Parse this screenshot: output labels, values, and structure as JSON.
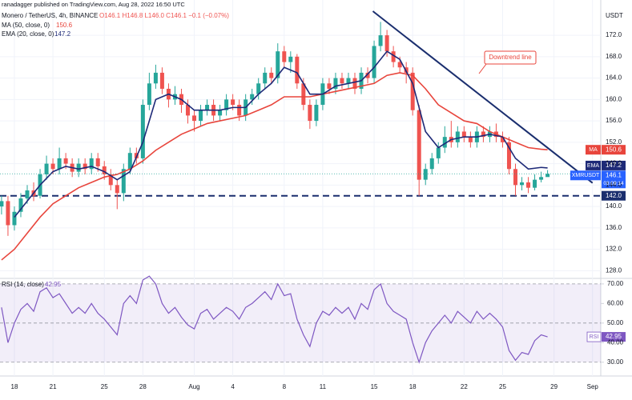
{
  "header": {
    "publisher": "ranadagger published on TradingView.com, Aug 28, 2022 16:50 UTC",
    "symbol": "Monero / TetherUS, 4h, BINANCE",
    "ohlc": "O146.1 H146.8 L146.0 C146.1 −0.1 (−0.07%)",
    "currency": "USDT",
    "ticker": "XMRUSDT",
    "countdown": "03:09:14"
  },
  "chart_data": [
    {
      "type": "candlestick",
      "x": [
        17,
        17.5,
        18,
        18.5,
        19,
        19.5,
        20,
        20.5,
        21,
        21.5,
        22,
        22.5,
        23,
        23.5,
        24,
        24.5,
        25,
        25.5,
        26,
        26.5,
        27,
        27.5,
        28,
        28.5,
        29,
        29.5,
        30,
        30.5,
        31,
        31.5,
        32,
        32.5,
        33,
        33.5,
        34,
        34.5,
        35,
        35.5,
        36,
        36.5,
        37,
        37.5,
        38,
        38.5,
        39,
        39.5,
        40,
        40.5,
        41,
        41.5,
        42,
        42.5,
        43,
        43.5,
        44,
        44.5,
        45,
        45.5,
        46,
        46.5,
        47,
        47.5,
        48,
        48.5,
        49,
        49.5,
        50,
        50.5,
        51,
        51.5,
        52,
        52.5,
        53,
        53.5,
        54,
        54.5,
        55,
        55.5,
        56,
        56.5,
        57,
        57.5,
        58,
        58.5,
        59,
        59.5
      ],
      "open": [
        140,
        141,
        136.5,
        139,
        141.5,
        143,
        142,
        146,
        148,
        147,
        149,
        148,
        146.5,
        148,
        147,
        149,
        147.5,
        146,
        144,
        142.5,
        147,
        150,
        149,
        159,
        163,
        165,
        162,
        160,
        161,
        159,
        157,
        156,
        158,
        159,
        157,
        158,
        160,
        159,
        157,
        160,
        161,
        163,
        165,
        164,
        169,
        167,
        168,
        163,
        159,
        156,
        159,
        163,
        162,
        164,
        163,
        164,
        162,
        165,
        164,
        170,
        172,
        169,
        167,
        166,
        165,
        158,
        145,
        147,
        149,
        151,
        153,
        152,
        154,
        153,
        152,
        154,
        153,
        154,
        153,
        152,
        147,
        144,
        144.5,
        143.5,
        145,
        145.5
      ],
      "high": [
        142,
        142,
        140,
        142.5,
        144,
        144.5,
        147,
        149.5,
        149,
        151,
        150,
        149,
        149,
        149,
        150,
        150,
        148.5,
        147,
        145,
        148,
        151,
        151,
        160,
        165,
        166.5,
        166,
        163,
        162.5,
        162,
        160,
        158,
        159,
        160,
        160,
        159,
        161,
        161,
        160,
        161,
        162,
        164,
        166,
        166,
        170.5,
        170,
        169,
        168.5,
        164,
        160,
        160,
        164,
        164,
        165,
        165,
        165,
        165,
        166,
        166,
        171,
        174.5,
        173,
        170,
        168,
        167,
        166,
        159,
        148,
        150,
        152,
        155,
        156,
        155,
        155,
        154,
        155,
        155,
        155,
        155.5,
        154,
        153,
        148,
        145.5,
        145.5,
        146,
        146.5,
        146.8
      ],
      "low": [
        138.5,
        134.5,
        135.5,
        138,
        140.5,
        141,
        141.5,
        145,
        146,
        146,
        147,
        145.5,
        145.5,
        146,
        146,
        146.5,
        145,
        143,
        139.5,
        141,
        146,
        148,
        148,
        158,
        162,
        161,
        158.5,
        159,
        157.5,
        155.5,
        154,
        155,
        157,
        156,
        156,
        157,
        158,
        156,
        156,
        159,
        160,
        162,
        163,
        163,
        166,
        165,
        162,
        158,
        154.5,
        155,
        158,
        161,
        161,
        162,
        162,
        161,
        161,
        163,
        163,
        169,
        168,
        166,
        165,
        163,
        157,
        142,
        144,
        146,
        148,
        150,
        151,
        151,
        152,
        151,
        151,
        152,
        152,
        152,
        151,
        146,
        142,
        143,
        142.5,
        143,
        144.5,
        146
      ],
      "close": [
        141,
        136.5,
        139,
        141.5,
        143,
        142,
        146,
        148,
        147,
        149,
        148,
        146.5,
        148,
        147,
        149,
        147.5,
        146,
        144,
        142.5,
        147,
        150,
        149,
        159,
        163,
        165,
        162,
        160,
        161,
        159,
        157,
        156,
        158,
        159,
        157,
        158,
        160,
        159,
        157,
        160,
        161,
        163,
        165,
        164,
        169,
        167,
        168,
        163,
        159,
        156,
        159,
        163,
        162,
        164,
        163,
        164,
        162,
        165,
        164,
        170,
        172,
        169,
        167,
        166,
        165,
        158,
        145,
        147,
        149,
        151,
        153,
        152,
        154,
        153,
        152,
        154,
        153,
        154,
        153,
        152,
        147,
        144,
        144.5,
        143.5,
        145,
        145.5,
        146.1
      ],
      "color_up": "#26a69a",
      "color_down": "#ef5350",
      "xlim": [
        16.88,
        63.64
      ],
      "xticks": [
        18,
        21,
        25,
        28,
        {
          "value": 32,
          "label": "Aug"
        },
        {
          "value": 35,
          "label": "4"
        },
        {
          "value": 39,
          "label": "8"
        },
        {
          "value": 42,
          "label": "11"
        },
        {
          "value": 46,
          "label": "15"
        },
        {
          "value": 49,
          "label": "18"
        },
        {
          "value": 53,
          "label": "22"
        },
        {
          "value": 56,
          "label": "25"
        },
        {
          "value": 60,
          "label": "29"
        },
        {
          "value": 63,
          "label": "Sep"
        }
      ],
      "ylim": [
        127,
        177.1
      ],
      "yticks": [
        {
          "value": 128,
          "label": "128.0"
        },
        {
          "value": 132,
          "label": "132.0"
        },
        {
          "value": 136,
          "label": "136.0"
        },
        {
          "value": 140,
          "label": "140.0"
        },
        {
          "value": 144,
          "label": "144.0"
        },
        {
          "value": 148,
          "label": "148.0"
        },
        {
          "value": 152,
          "label": "152.0"
        },
        {
          "value": 156,
          "label": "156.0"
        },
        {
          "value": 160,
          "label": "160.0"
        },
        {
          "value": 164,
          "label": "164.0"
        },
        {
          "value": 168,
          "label": "168.0"
        },
        {
          "value": 172,
          "label": "172.0"
        }
      ],
      "grid": true,
      "lines": [
        {
          "name": "MA",
          "legend": "MA (50, close, 0)",
          "color": "#e8453c",
          "x": [
            17,
            18,
            19,
            20,
            21,
            22,
            23,
            24,
            25,
            26,
            27,
            28,
            29,
            30,
            31,
            32,
            33,
            34,
            35,
            36,
            37,
            38,
            39,
            40,
            41,
            42,
            43,
            44,
            45,
            46,
            47,
            48,
            49,
            50,
            51,
            52,
            53,
            54,
            55,
            56,
            57,
            58,
            59,
            59.5
          ],
          "values": [
            130,
            132,
            135,
            138,
            140.5,
            142,
            143.5,
            144.5,
            145.5,
            146,
            147,
            148.5,
            150.5,
            152,
            153.5,
            154.5,
            155.5,
            156,
            156.5,
            157,
            158,
            159,
            160.5,
            160.5,
            160.5,
            161,
            161.5,
            162,
            162.5,
            163,
            164.5,
            165,
            164.5,
            162,
            159,
            157.5,
            156,
            155.5,
            154,
            153,
            152,
            151,
            150.7,
            150.6
          ]
        },
        {
          "name": "EMA",
          "legend": "EMA (20, close, 0)",
          "color": "#1e2a78",
          "x": [
            18,
            19,
            20,
            21,
            22,
            23,
            24,
            25,
            26,
            27,
            28,
            29,
            30,
            31,
            32,
            33,
            34,
            35,
            36,
            37,
            38,
            39,
            40,
            41,
            42,
            43,
            44,
            45,
            46,
            47,
            48,
            49,
            50,
            51,
            52,
            53,
            54,
            55,
            56,
            57,
            58,
            59,
            59.5
          ],
          "values": [
            138,
            141,
            144,
            146.5,
            147.5,
            147,
            147.5,
            146.5,
            145,
            146.5,
            152,
            160,
            161,
            160,
            158,
            158,
            158,
            158.5,
            158.5,
            161,
            163,
            166,
            165,
            161,
            161,
            162.5,
            163,
            163.5,
            166,
            169,
            167.5,
            163,
            154,
            151,
            152.5,
            153,
            153,
            153.5,
            153,
            149,
            147,
            147.3,
            147.2
          ]
        }
      ],
      "trendline": {
        "label": "Downtrend line",
        "color": "#1a2e6e",
        "x": [
          45.9,
          63.0
        ],
        "values": [
          176.5,
          144.4
        ]
      },
      "support": {
        "value": 142,
        "label": "142.0",
        "color": "#1a2e6e"
      }
    },
    {
      "type": "line",
      "title": "RSI (14, close)",
      "name": "RSI",
      "color": "#7e57c2",
      "x": [
        17,
        17.5,
        18,
        18.5,
        19,
        19.5,
        20,
        20.5,
        21,
        21.5,
        22,
        22.5,
        23,
        23.5,
        24,
        24.5,
        25,
        25.5,
        26,
        26.5,
        27,
        27.5,
        28,
        28.5,
        29,
        29.5,
        30,
        30.5,
        31,
        31.5,
        32,
        32.5,
        33,
        33.5,
        34,
        34.5,
        35,
        35.5,
        36,
        36.5,
        37,
        37.5,
        38,
        38.5,
        39,
        39.5,
        40,
        40.5,
        41,
        41.5,
        42,
        42.5,
        43,
        43.5,
        44,
        44.5,
        45,
        45.5,
        46,
        46.5,
        47,
        47.5,
        48,
        48.5,
        49,
        49.5,
        50,
        50.5,
        51,
        51.5,
        52,
        52.5,
        53,
        53.5,
        54,
        54.5,
        55,
        55.5,
        56,
        56.5,
        57,
        57.5,
        58,
        58.5,
        59,
        59.5
      ],
      "values": [
        58,
        40,
        50,
        57,
        60,
        56,
        66,
        68,
        63,
        65,
        60,
        55,
        58,
        55,
        60,
        55,
        52,
        48,
        44,
        60,
        64,
        60,
        72,
        74,
        70,
        60,
        55,
        58,
        53,
        49,
        47,
        55,
        57,
        52,
        55,
        58,
        56,
        52,
        58,
        60,
        63,
        66,
        62,
        70,
        64,
        65,
        52,
        44,
        38,
        50,
        56,
        54,
        58,
        55,
        58,
        52,
        60,
        57,
        67,
        70,
        60,
        56,
        54,
        52,
        40,
        30,
        40,
        46,
        50,
        54,
        50,
        56,
        53,
        50,
        56,
        52,
        55,
        52,
        48,
        36,
        31,
        35,
        34,
        41,
        44,
        42.95
      ],
      "xlim": [
        16.88,
        63.64
      ],
      "ylim": [
        25,
        72
      ],
      "yticks": [
        {
          "value": 30,
          "label": "30.00"
        },
        {
          "value": 40,
          "label": "40.00"
        },
        {
          "value": 50,
          "label": "50.00"
        },
        {
          "value": 60,
          "label": "60.00"
        },
        {
          "value": 70,
          "label": "70.00"
        }
      ],
      "levels": [
        30,
        50,
        70
      ]
    }
  ]
}
